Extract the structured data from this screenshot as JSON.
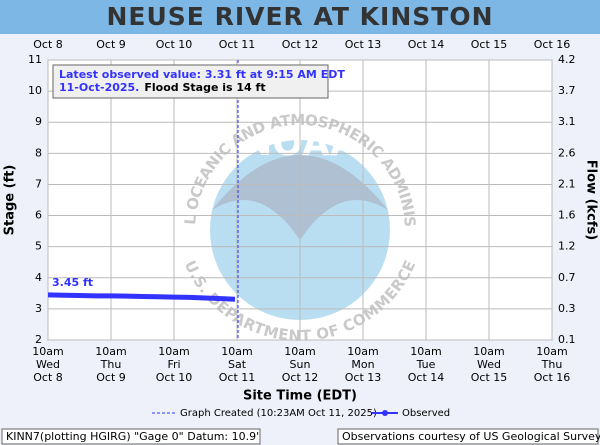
{
  "chart_data": {
    "type": "line",
    "title": "NEUSE RIVER AT KINSTON",
    "ylabel": "Stage (ft)",
    "y2label": "Flow (kcfs)",
    "xlabel": "Site Time (EDT)",
    "xlim": [
      "2025-10-08T10:00",
      "2025-10-16T10:00"
    ],
    "xticks": [
      {
        "value": "2025-10-08T10:00",
        "label": [
          "10am",
          "Wed",
          "Oct 8"
        ]
      },
      {
        "value": "2025-10-09T10:00",
        "label": [
          "10am",
          "Thu",
          "Oct 9"
        ]
      },
      {
        "value": "2025-10-10T10:00",
        "label": [
          "10am",
          "Fri",
          "Oct 10"
        ]
      },
      {
        "value": "2025-10-11T10:00",
        "label": [
          "10am",
          "Sat",
          "Oct 11"
        ]
      },
      {
        "value": "2025-10-12T10:00",
        "label": [
          "10am",
          "Sun",
          "Oct 12"
        ]
      },
      {
        "value": "2025-10-13T10:00",
        "label": [
          "10am",
          "Mon",
          "Oct 13"
        ]
      },
      {
        "value": "2025-10-14T10:00",
        "label": [
          "10am",
          "Tue",
          "Oct 14"
        ]
      },
      {
        "value": "2025-10-15T10:00",
        "label": [
          "10am",
          "Wed",
          "Oct 15"
        ]
      },
      {
        "value": "2025-10-16T10:00",
        "label": [
          "10am",
          "Thu",
          "Oct 16"
        ]
      }
    ],
    "x2ticks": [
      {
        "value": "2025-10-08T10:00",
        "label": "Oct 8"
      },
      {
        "value": "2025-10-09T10:00",
        "label": "Oct 9"
      },
      {
        "value": "2025-10-10T10:00",
        "label": "Oct 10"
      },
      {
        "value": "2025-10-11T10:00",
        "label": "Oct 11"
      },
      {
        "value": "2025-10-12T10:00",
        "label": "Oct 12"
      },
      {
        "value": "2025-10-13T10:00",
        "label": "Oct 13"
      },
      {
        "value": "2025-10-14T10:00",
        "label": "Oct 14"
      },
      {
        "value": "2025-10-15T10:00",
        "label": "Oct 15"
      },
      {
        "value": "2025-10-16T10:00",
        "label": "Oct 16"
      }
    ],
    "ylim": [
      2,
      11
    ],
    "yticks": [
      2,
      3,
      4,
      5,
      6,
      7,
      8,
      9,
      10,
      11
    ],
    "y2ticks": [
      0.1,
      0.3,
      0.7,
      1.2,
      1.6,
      2.1,
      2.6,
      3.1,
      3.7,
      4.2
    ],
    "grid": true,
    "x": [
      "2025-10-08T10:00",
      "2025-10-08T16:00",
      "2025-10-08T22:00",
      "2025-10-09T04:00",
      "2025-10-09T10:00",
      "2025-10-09T16:00",
      "2025-10-09T22:00",
      "2025-10-10T04:00",
      "2025-10-10T10:00",
      "2025-10-10T16:00",
      "2025-10-10T22:00",
      "2025-10-11T04:00",
      "2025-10-11T09:15"
    ],
    "series": [
      {
        "name": "Observed",
        "color": "#3333ff",
        "values": [
          3.45,
          3.44,
          3.43,
          3.42,
          3.42,
          3.41,
          3.4,
          3.39,
          3.38,
          3.37,
          3.35,
          3.33,
          3.31
        ],
        "value_labels": [
          "3.45 ft",
          null,
          null,
          null,
          null,
          null,
          null,
          null,
          null,
          null,
          null,
          null,
          null
        ]
      }
    ],
    "created": {
      "x": "2025-10-11T10:23",
      "name": "Graph Created (10:23AM Oct 11, 2025)"
    },
    "annotation": {
      "line1": "Latest observed value: 3.31 ft at 9:15 AM EDT",
      "date": "11-Oct-2025.",
      "flood": "Flood Stage is 14 ft"
    },
    "watermark": {
      "logo": "NOAA",
      "top": "NATIONAL OCEANIC AND ATMOSPHERIC ADMINISTRATION",
      "bottom": "U.S. DEPARTMENT OF COMMERCE"
    },
    "footer": {
      "left": "KINN7(plotting HGIRG) \"Gage 0\" Datum: 10.9'",
      "right": "Observations courtesy of US Geological Survey"
    }
  }
}
